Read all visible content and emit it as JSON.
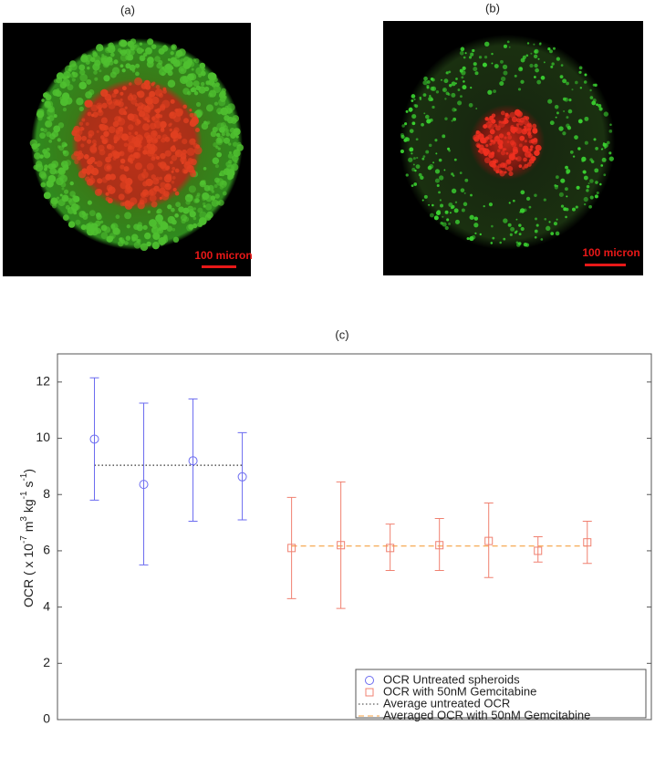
{
  "panels": [
    {
      "label": "(a)",
      "scale_bar": "100 micron"
    },
    {
      "label": "(b)",
      "scale_bar": "100 micron"
    }
  ],
  "chart_data": {
    "type": "scatter",
    "title": "(c)",
    "ylabel": [
      "OCR ( x 10",
      "-7",
      " m",
      "3",
      " kg",
      "-1",
      " s",
      "-1",
      ")"
    ],
    "xlim": [
      0.25,
      12.3
    ],
    "ylim": [
      0,
      13
    ],
    "yticks": [
      0,
      2,
      4,
      6,
      8,
      10,
      12
    ],
    "series": [
      {
        "name": "OCR Untreated spheroids",
        "marker": "circle",
        "color": "#6b6bf0",
        "x": [
          1,
          2,
          3,
          4
        ],
        "values": [
          9.97,
          8.36,
          9.2,
          8.63
        ],
        "lower": [
          7.8,
          5.5,
          7.05,
          7.1
        ],
        "upper": [
          12.15,
          11.25,
          11.4,
          10.2
        ]
      },
      {
        "name": "OCR with 50nM Gemcitabine",
        "marker": "square",
        "color": "#f08070",
        "x": [
          5,
          6,
          7,
          8,
          9,
          10,
          11
        ],
        "values": [
          6.1,
          6.2,
          6.1,
          6.2,
          6.35,
          6.0,
          6.3
        ],
        "lower": [
          4.3,
          3.95,
          5.3,
          5.3,
          5.05,
          5.6,
          5.55
        ],
        "upper": [
          7.9,
          8.45,
          6.95,
          7.15,
          7.7,
          6.5,
          7.05
        ]
      }
    ],
    "lines": [
      {
        "name": "Average untreated OCR",
        "style": "dotted",
        "color": "#333333",
        "x": [
          1,
          4
        ],
        "values": [
          9.04,
          9.04
        ]
      },
      {
        "name": "Averaged OCR with 50nM Gemcitabine",
        "style": "dashed",
        "color": "#f5a040",
        "x": [
          5,
          11
        ],
        "values": [
          6.17,
          6.17
        ]
      }
    ]
  }
}
